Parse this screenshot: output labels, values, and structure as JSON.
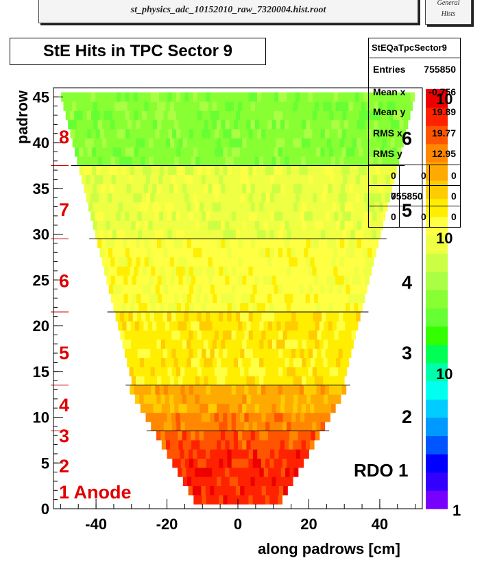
{
  "header": {
    "file_name": "st_physics_adc_10152010_raw_7320004.hist.root",
    "general_line1": "General",
    "general_line2": "Hists"
  },
  "stats": {
    "name": "StEQaTpcSector9",
    "entries_label": "Entries",
    "entries_value": "755850",
    "mean_x_label": "Mean x",
    "mean_x_value": "-0.756",
    "mean_y_label": "Mean y",
    "mean_y_value": "19.89",
    "rms_x_label": "RMS x",
    "rms_x_value": "19.77",
    "rms_y_label": "RMS y",
    "rms_y_value": "12.95",
    "grid": [
      [
        "0",
        "0",
        "0"
      ],
      [
        "0",
        "755850",
        "0"
      ],
      [
        "0",
        "0",
        "0"
      ]
    ]
  },
  "chart_data": {
    "type": "heatmap",
    "title": "StE Hits in TPC Sector 9",
    "xlabel": "along padrows [cm]",
    "ylabel": "padrow",
    "xlim": [
      -52,
      52
    ],
    "ylim": [
      0,
      46
    ],
    "x_ticks": [
      "-40",
      "-20",
      "0",
      "20",
      "40"
    ],
    "y_ticks": [
      "0",
      "5",
      "10",
      "15",
      "20",
      "25",
      "30",
      "35",
      "40",
      "45"
    ],
    "z_scale": "log",
    "colorbar_labels": [
      "1",
      "10",
      "10",
      "10"
    ],
    "colorbar_exponents": [
      "2",
      "3",
      "4",
      "5",
      "6"
    ],
    "colors": [
      "#7700ff",
      "#3300ff",
      "#0000ff",
      "#0055ff",
      "#0099ff",
      "#00ccff",
      "#00ffee",
      "#00ffaa",
      "#00ff55",
      "#33ff00",
      "#66ff33",
      "#88ff33",
      "#aaff44",
      "#ccff44",
      "#eeff44",
      "#ffff44",
      "#ffee00",
      "#ffcc00",
      "#ffaa00",
      "#ff8800",
      "#ff5500",
      "#ff2200",
      "#ee0000"
    ],
    "rdo_boundaries_padrow": [
      37.5,
      29.5,
      21.5,
      13.5,
      8.5
    ],
    "rdo_labels": [
      "8",
      "7",
      "6",
      "5",
      "4",
      "3",
      "2",
      "1 Anode"
    ],
    "rdo_annotation": "RDO 1"
  }
}
